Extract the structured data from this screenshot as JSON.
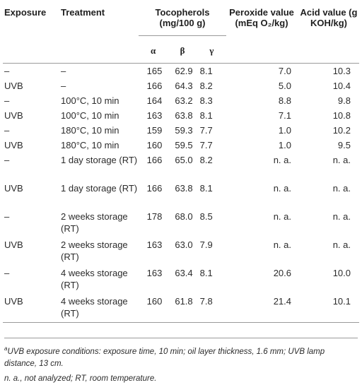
{
  "headers": {
    "exposure": "Exposure",
    "treatment": "Treatment",
    "tocopherols": "Tocopherols (mg/100 g)",
    "peroxide": "Peroxide value (mEq O₂/kg)",
    "acid": "Acid value (g KOH/kg)",
    "alpha": "α",
    "beta": "β",
    "gamma": "γ"
  },
  "rows": [
    {
      "exposure": "–",
      "treatment": "–",
      "a": "165",
      "b": "62.9",
      "g": "8.1",
      "peroxide": "7.0",
      "acid": "10.3"
    },
    {
      "exposure": "UVB",
      "treatment": "–",
      "a": "166",
      "b": "64.3",
      "g": "8.2",
      "peroxide": "5.0",
      "acid": "10.4"
    },
    {
      "exposure": "–",
      "treatment": "100°C, 10 min",
      "a": "164",
      "b": "63.2",
      "g": "8.3",
      "peroxide": "8.8",
      "acid": "9.8"
    },
    {
      "exposure": "UVB",
      "treatment": "100°C, 10 min",
      "a": "163",
      "b": "63.8",
      "g": "8.1",
      "peroxide": "7.1",
      "acid": "10.8"
    },
    {
      "exposure": "–",
      "treatment": "180°C, 10 min",
      "a": "159",
      "b": "59.3",
      "g": "7.7",
      "peroxide": "1.0",
      "acid": "10.2"
    },
    {
      "exposure": "UVB",
      "treatment": "180°C, 10 min",
      "a": "160",
      "b": "59.5",
      "g": "7.7",
      "peroxide": "1.0",
      "acid": "9.5"
    },
    {
      "exposure": "–",
      "treatment": "1 day storage (RT)",
      "a": "166",
      "b": "65.0",
      "g": "8.2",
      "peroxide": "n. a.",
      "acid": "n. a."
    },
    {
      "exposure": "UVB",
      "treatment": "1 day storage (RT)",
      "a": "166",
      "b": "63.8",
      "g": "8.1",
      "peroxide": "n. a.",
      "acid": "n. a."
    },
    {
      "exposure": "–",
      "treatment": "2 weeks storage (RT)",
      "a": "178",
      "b": "68.0",
      "g": "8.5",
      "peroxide": "n. a.",
      "acid": "n. a."
    },
    {
      "exposure": "UVB",
      "treatment": "2 weeks storage (RT)",
      "a": "163",
      "b": "63.0",
      "g": "7.9",
      "peroxide": "n. a.",
      "acid": "n. a."
    },
    {
      "exposure": "–",
      "treatment": "4 weeks storage (RT)",
      "a": "163",
      "b": "63.4",
      "g": "8.1",
      "peroxide": "20.6",
      "acid": "10.0"
    },
    {
      "exposure": "UVB",
      "treatment": "4 weeks storage (RT)",
      "a": "160",
      "b": "61.8",
      "g": "7.8",
      "peroxide": "21.4",
      "acid": "10.1"
    }
  ],
  "footnotes": {
    "a_mark": "a",
    "a_text": "UVB exposure conditions: exposure time, 10 min; oil layer thickness, 1.6 mm; UVB lamp distance, 13 cm.",
    "abbrev": "n. a., not analyzed; RT, room temperature."
  }
}
